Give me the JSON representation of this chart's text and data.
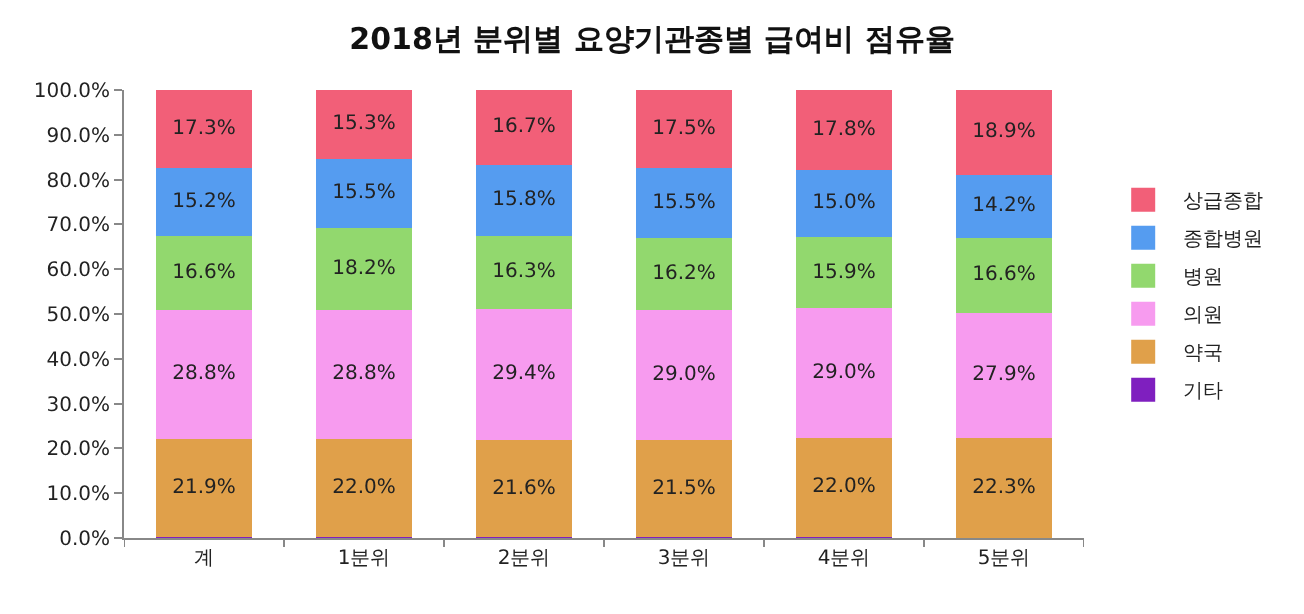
{
  "chart_data": {
    "type": "bar",
    "stacked": true,
    "title": "2018년 분위별 요양기관종별 급여비 점유율",
    "categories": [
      "계",
      "1분위",
      "2분위",
      "3분위",
      "4분위",
      "5분위"
    ],
    "series": [
      {
        "name": "기타",
        "color": "#7f1fbf",
        "values": [
          0.2,
          0.2,
          0.2,
          0.3,
          0.3,
          0.1
        ]
      },
      {
        "name": "약국",
        "color": "#e0a04a",
        "values": [
          21.9,
          22.0,
          21.6,
          21.5,
          22.0,
          22.3
        ],
        "value_labels": [
          "21.9%",
          "22.0%",
          "21.6%",
          "21.5%",
          "22.0%",
          "22.3%"
        ]
      },
      {
        "name": "의원",
        "color": "#f79bef",
        "values": [
          28.8,
          28.8,
          29.4,
          29.0,
          29.0,
          27.9
        ],
        "value_labels": [
          "28.8%",
          "28.8%",
          "29.4%",
          "29.0%",
          "29.0%",
          "27.9%"
        ]
      },
      {
        "name": "병원",
        "color": "#92d86e",
        "values": [
          16.6,
          18.2,
          16.3,
          16.2,
          15.9,
          16.6
        ],
        "value_labels": [
          "16.6%",
          "18.2%",
          "16.3%",
          "16.2%",
          "15.9%",
          "16.6%"
        ]
      },
      {
        "name": "종합병원",
        "color": "#559cf0",
        "values": [
          15.2,
          15.5,
          15.8,
          15.5,
          15.0,
          14.2
        ],
        "value_labels": [
          "15.2%",
          "15.5%",
          "15.8%",
          "15.5%",
          "15.0%",
          "14.2%"
        ]
      },
      {
        "name": "상급종합",
        "color": "#f25f78",
        "values": [
          17.3,
          15.3,
          16.7,
          17.5,
          17.8,
          18.9
        ],
        "value_labels": [
          "17.3%",
          "15.3%",
          "16.7%",
          "17.5%",
          "17.8%",
          "18.9%"
        ]
      }
    ],
    "ylim": [
      0,
      100
    ],
    "yticks": [
      {
        "value": 0,
        "label": "0.0%"
      },
      {
        "value": 10,
        "label": "10.0%"
      },
      {
        "value": 20,
        "label": "20.0%"
      },
      {
        "value": 30,
        "label": "30.0%"
      },
      {
        "value": 40,
        "label": "40.0%"
      },
      {
        "value": 50,
        "label": "50.0%"
      },
      {
        "value": 60,
        "label": "60.0%"
      },
      {
        "value": 70,
        "label": "70.0%"
      },
      {
        "value": 80,
        "label": "80.0%"
      },
      {
        "value": 90,
        "label": "90.0%"
      },
      {
        "value": 100,
        "label": "100.0%"
      }
    ],
    "grid": false,
    "legend": "right"
  }
}
